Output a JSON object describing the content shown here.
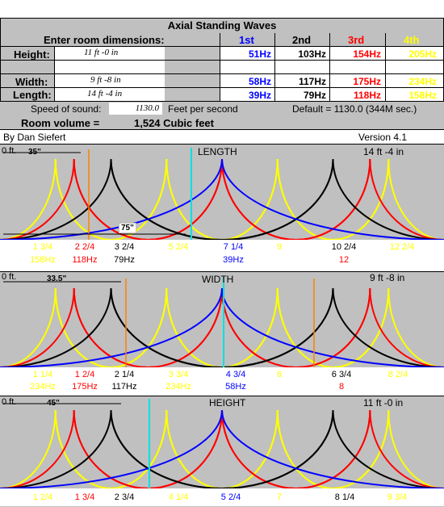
{
  "title": "Axial Standing Waves",
  "header": {
    "enter_label": "Enter room dimensions:",
    "harmonics": [
      "1st",
      "2nd",
      "3rd",
      "4th"
    ]
  },
  "colors": {
    "first": "#0000ff",
    "second": "#000000",
    "third": "#ff0000",
    "fourth": "#ffff00",
    "marker_orange": "#ff8000",
    "marker_cyan": "#00e0e0",
    "panel": "#c0c0c0"
  },
  "dimensions": [
    {
      "label": "Height:",
      "value": "11 ft  -0 in",
      "hz": [
        "51Hz",
        "103Hz",
        "154Hz",
        "205Hz"
      ]
    },
    {
      "label": "Width:",
      "value": "9 ft  -8 in",
      "hz": [
        "58Hz",
        "117Hz",
        "175Hz",
        "234Hz"
      ]
    },
    {
      "label": "Length:",
      "value": "14 ft  -4 in",
      "hz": [
        "39Hz",
        "79Hz",
        "118Hz",
        "158Hz"
      ]
    }
  ],
  "speed": {
    "label": "Speed of sound:",
    "value": "1130.0",
    "unit": "Feet per second",
    "default": "Default = 1130.0 (344M sec.)"
  },
  "volume": {
    "label": "Room volume =",
    "value": "1,524 Cubic feet"
  },
  "author": "By Dan Siefert",
  "version": "Version 4.1",
  "panels": [
    {
      "name": "LENGTH",
      "start": "0 ft.",
      "end": "14 ft -4 in",
      "marker_top": "35\"",
      "marker_bottom": "75\"",
      "labels": [
        {
          "text": "1 3/4",
          "color": "#ffff00",
          "sub": "158Hz",
          "sub_color": "#ffff00"
        },
        {
          "text": "2 2/4",
          "color": "#ff0000",
          "sub": "118Hz",
          "sub_color": "#ff0000"
        },
        {
          "text": "3 2/4",
          "color": "#000000",
          "sub": "79Hz",
          "sub_color": "#000000"
        },
        {
          "text": "5 2/4",
          "color": "#ffff00",
          "sub": "",
          "sub_color": ""
        },
        {
          "text": "7 1/4",
          "color": "#0000ff",
          "sub": "39Hz",
          "sub_color": "#0000ff"
        },
        {
          "text": "9",
          "color": "#ffff00",
          "sub": "",
          "sub_color": ""
        },
        {
          "text": "10 2/4",
          "color": "#000000",
          "sub": "12",
          "sub_color": "#ff0000"
        },
        {
          "text": "12 2/4",
          "color": "#ffff00",
          "sub": "",
          "sub_color": ""
        }
      ]
    },
    {
      "name": "WIDTH",
      "start": "0 ft.",
      "end": "9 ft -8 in",
      "marker_top": "33.5\"",
      "marker_bottom": "",
      "labels": [
        {
          "text": "1 1/4",
          "color": "#ffff00",
          "sub": "234Hz",
          "sub_color": "#ffff00"
        },
        {
          "text": "1 2/4",
          "color": "#ff0000",
          "sub": "175Hz",
          "sub_color": "#ff0000"
        },
        {
          "text": "2 1/4",
          "color": "#000000",
          "sub": "117Hz",
          "sub_color": "#000000"
        },
        {
          "text": "3 3/4",
          "color": "#ffff00",
          "sub": "234Hz",
          "sub_color": "#ffff00"
        },
        {
          "text": "4 3/4",
          "color": "#0000ff",
          "sub": "58Hz",
          "sub_color": "#0000ff"
        },
        {
          "text": "6",
          "color": "#ffff00",
          "sub": "",
          "sub_color": ""
        },
        {
          "text": "6 3/4",
          "color": "#000000",
          "sub": "8",
          "sub_color": "#ff0000"
        },
        {
          "text": "8 2/4",
          "color": "#ffff00",
          "sub": "",
          "sub_color": ""
        }
      ]
    },
    {
      "name": "HEIGHT",
      "start": "0 ft.",
      "end": "11 ft -0 in",
      "marker_top": "45\"",
      "marker_bottom": "",
      "labels": [
        {
          "text": "1 2/4",
          "color": "#ffff00",
          "sub": "",
          "sub_color": ""
        },
        {
          "text": "1 3/4",
          "color": "#ff0000",
          "sub": "",
          "sub_color": ""
        },
        {
          "text": "2 3/4",
          "color": "#000000",
          "sub": "",
          "sub_color": ""
        },
        {
          "text": "4 1/4",
          "color": "#ffff00",
          "sub": "",
          "sub_color": ""
        },
        {
          "text": "5 2/4",
          "color": "#0000ff",
          "sub": "",
          "sub_color": ""
        },
        {
          "text": "7",
          "color": "#ffff00",
          "sub": "",
          "sub_color": ""
        },
        {
          "text": "8 1/4",
          "color": "#000000",
          "sub": "",
          "sub_color": ""
        },
        {
          "text": "9 3/4",
          "color": "#ffff00",
          "sub": "",
          "sub_color": ""
        }
      ]
    }
  ]
}
